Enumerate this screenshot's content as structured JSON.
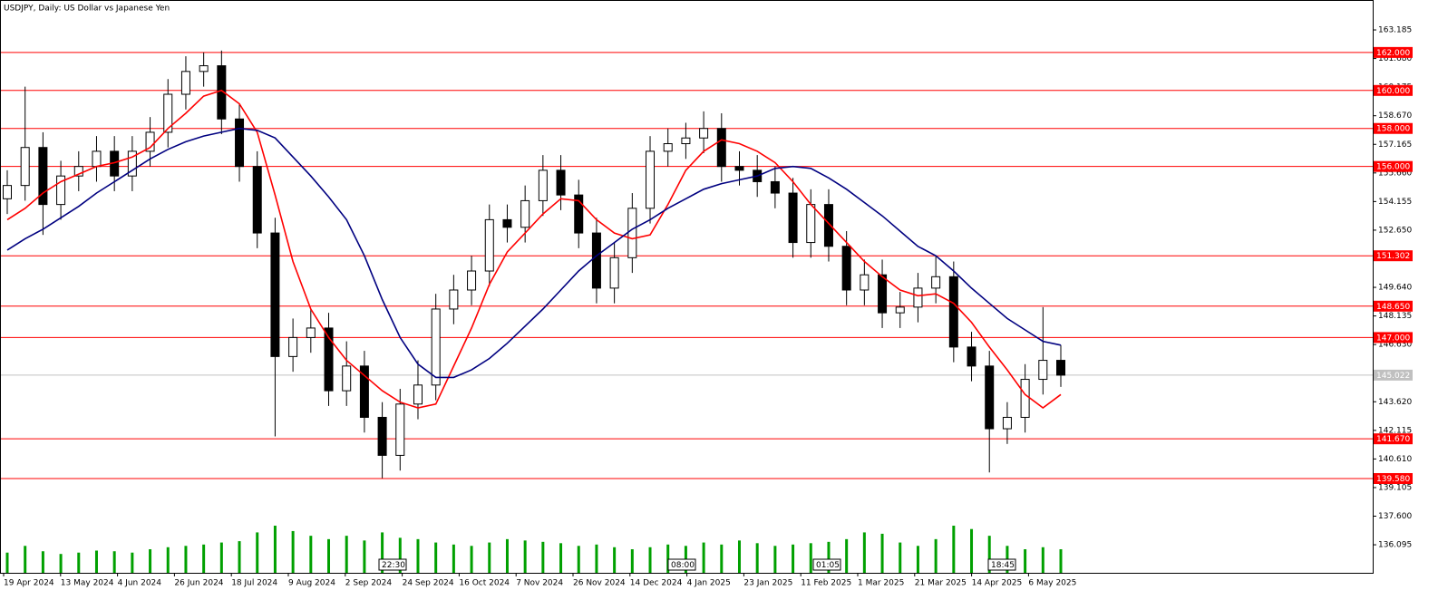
{
  "chart_data": {
    "type": "candlestick",
    "title": "USDJPY, Daily:  US Dollar vs Japanese Yen",
    "x_labels": [
      "19 Apr 2024",
      "13 May 2024",
      "4 Jun 2024",
      "26 Jun 2024",
      "18 Jul 2024",
      "9 Aug 2024",
      "2 Sep 2024",
      "24 Sep 2024",
      "16 Oct 2024",
      "7 Nov 2024",
      "26 Nov 2024",
      "14 Dec 2024",
      "4 Jan 2025",
      "23 Jan 2025",
      "11 Feb 2025",
      "1 Mar 2025",
      "21 Mar 2025",
      "14 Apr 2025",
      "6 May 2025"
    ],
    "period_separators": [
      "22:30",
      "08:00",
      "01:05",
      "18:45"
    ],
    "open": [
      154.3,
      155.0,
      157.0,
      154.0,
      155.5,
      156.0,
      156.8,
      155.5,
      156.8,
      157.8,
      159.8,
      161.0,
      161.3,
      158.5,
      156.0,
      152.5,
      146.0,
      147.0,
      147.5,
      144.2,
      145.5,
      142.8,
      140.8,
      143.5,
      144.5,
      148.5,
      149.5,
      150.5,
      153.2,
      152.8,
      154.2,
      155.8,
      154.5,
      152.5,
      149.6,
      151.2,
      153.8,
      156.8,
      157.2,
      157.5,
      158.0,
      156.0,
      155.8,
      155.2,
      154.6,
      152.0,
      154.0,
      151.8,
      149.5,
      150.3,
      148.3,
      148.6,
      149.6,
      150.2,
      146.5,
      145.5,
      142.2,
      142.8,
      144.8,
      145.8
    ],
    "high": [
      155.8,
      160.2,
      157.8,
      156.3,
      156.8,
      157.6,
      157.6,
      157.6,
      158.6,
      160.6,
      161.8,
      162.0,
      162.1,
      159.3,
      156.8,
      153.3,
      148.0,
      148.5,
      148.3,
      146.8,
      146.3,
      143.6,
      144.3,
      145.8,
      149.3,
      150.3,
      151.3,
      154.0,
      154.0,
      155.0,
      156.6,
      156.6,
      155.3,
      153.3,
      152.0,
      154.6,
      157.6,
      158.0,
      158.3,
      158.9,
      158.8,
      156.8,
      156.6,
      156.0,
      155.4,
      154.8,
      154.8,
      152.6,
      151.1,
      151.1,
      149.4,
      150.4,
      151.3,
      151.0,
      147.3,
      146.3,
      143.6,
      145.6,
      148.6,
      146.6
    ],
    "low": [
      153.5,
      154.2,
      152.4,
      153.2,
      154.7,
      155.2,
      154.7,
      154.7,
      156.0,
      157.0,
      159.0,
      160.2,
      157.7,
      155.2,
      151.7,
      141.8,
      145.2,
      146.2,
      143.4,
      143.4,
      142.0,
      139.6,
      140.0,
      142.7,
      143.7,
      147.7,
      148.7,
      149.7,
      152.0,
      152.0,
      153.4,
      153.7,
      151.7,
      148.8,
      148.8,
      150.4,
      153.0,
      156.0,
      156.4,
      156.7,
      155.2,
      155.0,
      154.4,
      153.8,
      151.2,
      151.2,
      151.0,
      148.7,
      148.7,
      147.5,
      147.5,
      147.8,
      148.8,
      145.7,
      144.7,
      139.9,
      141.4,
      142.0,
      144.0,
      144.4
    ],
    "close": [
      155.0,
      157.0,
      154.0,
      155.5,
      156.0,
      156.8,
      155.5,
      156.8,
      157.8,
      159.8,
      161.0,
      161.3,
      158.5,
      156.0,
      152.5,
      146.0,
      147.0,
      147.5,
      144.2,
      145.5,
      142.8,
      140.8,
      143.5,
      144.5,
      148.5,
      149.5,
      150.5,
      153.2,
      152.8,
      154.2,
      155.8,
      154.5,
      152.5,
      149.6,
      151.2,
      153.8,
      156.8,
      157.2,
      157.5,
      158.0,
      156.0,
      155.8,
      155.2,
      154.6,
      152.0,
      154.0,
      151.8,
      149.5,
      150.3,
      148.3,
      148.6,
      149.6,
      150.2,
      146.5,
      145.5,
      142.2,
      142.8,
      144.8,
      145.8,
      145.02
    ],
    "moving_averages": [
      {
        "color": "#ff0000",
        "values": [
          153.2,
          153.8,
          154.6,
          155.2,
          155.6,
          156.0,
          156.2,
          156.5,
          157.0,
          158.0,
          158.8,
          159.7,
          160.0,
          159.3,
          157.8,
          154.5,
          151.0,
          148.5,
          147.0,
          145.8,
          145.0,
          144.2,
          143.6,
          143.3,
          143.5,
          145.5,
          147.5,
          149.8,
          151.5,
          152.5,
          153.5,
          154.3,
          154.2,
          153.2,
          152.5,
          152.2,
          152.4,
          154.0,
          155.8,
          156.8,
          157.4,
          157.2,
          156.8,
          156.2,
          155.2,
          154.0,
          153.0,
          152.0,
          151.0,
          150.2,
          149.5,
          149.2,
          149.3,
          148.8,
          147.8,
          146.5,
          145.3,
          144.0,
          143.3,
          144.0
        ]
      },
      {
        "color": "#000080",
        "values": [
          151.6,
          152.2,
          152.7,
          153.3,
          153.9,
          154.6,
          155.2,
          155.8,
          156.4,
          156.9,
          157.3,
          157.6,
          157.8,
          158.0,
          157.9,
          157.5,
          156.5,
          155.5,
          154.4,
          153.2,
          151.3,
          149.0,
          147.0,
          145.6,
          144.9,
          144.9,
          145.3,
          145.9,
          146.7,
          147.6,
          148.5,
          149.5,
          150.5,
          151.3,
          152.0,
          152.7,
          153.2,
          153.8,
          154.3,
          154.8,
          155.1,
          155.3,
          155.5,
          155.9,
          156.0,
          155.9,
          155.4,
          154.8,
          154.1,
          153.4,
          152.6,
          151.8,
          151.3,
          150.5,
          149.6,
          148.8,
          148.0,
          147.4,
          146.8,
          146.6
        ]
      }
    ],
    "volume": {
      "color": "#00a000",
      "values": [
        30,
        40,
        32,
        28,
        30,
        33,
        32,
        30,
        35,
        38,
        40,
        42,
        45,
        47,
        60,
        70,
        62,
        55,
        50,
        55,
        48,
        60,
        52,
        50,
        45,
        42,
        40,
        45,
        50,
        48,
        46,
        44,
        40,
        42,
        38,
        35,
        38,
        42,
        40,
        45,
        42,
        48,
        44,
        40,
        42,
        44,
        46,
        50,
        60,
        58,
        45,
        40,
        50,
        70,
        65,
        55,
        40,
        35,
        38,
        35
      ]
    },
    "levels": [
      {
        "value": 162,
        "label": "162.000"
      },
      {
        "value": 160,
        "label": "160.000"
      },
      {
        "value": 158,
        "label": "158.000"
      },
      {
        "value": 156,
        "label": "156.000"
      },
      {
        "value": 151.302,
        "label": "151.302"
      },
      {
        "value": 148.65,
        "label": "148.650"
      },
      {
        "value": 147,
        "label": "147.000"
      },
      {
        "value": 141.67,
        "label": "141.670"
      },
      {
        "value": 139.58,
        "label": "139.580"
      }
    ],
    "level_color": "#ff0000",
    "last_price": {
      "value": 145.022,
      "label": "145.022"
    },
    "ylim": [
      134.62,
      164.76
    ],
    "yticks": [
      163.185,
      {
        "value": 161.68,
        "label": "161.680"
      },
      160.175,
      {
        "value": 158.67,
        "label": "158.670"
      },
      157.165,
      {
        "value": 155.66,
        "label": "155.660"
      },
      154.155,
      {
        "value": 152.65,
        "label": "152.650"
      },
      {
        "value": 149.64,
        "label": "149.640"
      },
      148.135,
      {
        "value": 146.63,
        "label": "146.630"
      },
      {
        "value": 143.62,
        "label": "143.620"
      },
      142.115,
      {
        "value": 140.61,
        "label": "140.610"
      },
      139.105,
      {
        "value": 137.6,
        "label": "137.600"
      },
      136.095
    ]
  }
}
